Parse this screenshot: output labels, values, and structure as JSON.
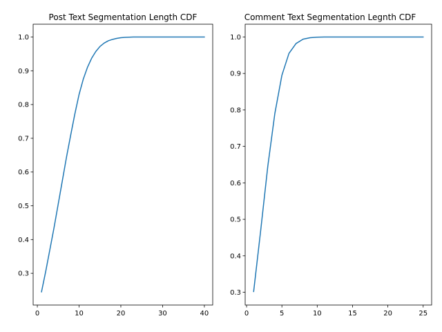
{
  "chart_data": [
    {
      "type": "line",
      "title": "Post Text Segmentation Length CDF",
      "xlabel": "",
      "ylabel": "",
      "xlim": [
        -1,
        42
      ],
      "ylim": [
        0.206,
        1.038
      ],
      "xticks": [
        0,
        10,
        20,
        30,
        40
      ],
      "yticks": [
        0.3,
        0.4,
        0.5,
        0.6,
        0.7,
        0.8,
        0.9,
        1.0
      ],
      "xtick_labels": [
        "0",
        "10",
        "20",
        "30",
        "40"
      ],
      "ytick_labels": [
        "0.3",
        "0.4",
        "0.5",
        "0.6",
        "0.7",
        "0.8",
        "0.9",
        "1.0"
      ],
      "grid": false,
      "color": "#1f77b4",
      "series": [
        {
          "x": [
            1,
            2,
            3,
            4,
            5,
            6,
            7,
            8,
            9,
            10,
            11,
            12,
            13,
            14,
            15,
            16,
            17,
            18,
            19,
            20,
            21,
            22,
            23,
            24,
            25,
            26,
            27,
            28,
            29,
            30,
            31,
            32,
            33,
            34,
            35,
            36,
            37,
            38,
            39,
            40
          ],
          "y": [
            0.245,
            0.305,
            0.37,
            0.435,
            0.505,
            0.575,
            0.645,
            0.71,
            0.773,
            0.83,
            0.875,
            0.91,
            0.937,
            0.957,
            0.972,
            0.982,
            0.989,
            0.993,
            0.996,
            0.998,
            0.999,
            0.9995,
            1.0,
            1.0,
            1.0,
            1.0,
            1.0,
            1.0,
            1.0,
            1.0,
            1.0,
            1.0,
            1.0,
            1.0,
            1.0,
            1.0,
            1.0,
            1.0,
            1.0,
            1.0
          ]
        }
      ]
    },
    {
      "type": "line",
      "title": "Comment Text Segmentation Legnth CDF",
      "xlabel": "",
      "ylabel": "",
      "xlim": [
        -0.2,
        26.2
      ],
      "ylim": [
        0.265,
        1.035
      ],
      "xticks": [
        0,
        5,
        10,
        15,
        20,
        25
      ],
      "yticks": [
        0.3,
        0.4,
        0.5,
        0.6,
        0.7,
        0.8,
        0.9,
        1.0
      ],
      "xtick_labels": [
        "0",
        "5",
        "10",
        "15",
        "20",
        "25"
      ],
      "ytick_labels": [
        "0.3",
        "0.4",
        "0.5",
        "0.6",
        "0.7",
        "0.8",
        "0.9",
        "1.0"
      ],
      "grid": false,
      "color": "#1f77b4",
      "series": [
        {
          "x": [
            1,
            2,
            3,
            4,
            5,
            6,
            7,
            8,
            9,
            10,
            11,
            12,
            13,
            14,
            15,
            16,
            17,
            18,
            19,
            20,
            21,
            22,
            23,
            24,
            25
          ],
          "y": [
            0.302,
            0.47,
            0.645,
            0.79,
            0.895,
            0.955,
            0.982,
            0.994,
            0.998,
            0.9995,
            1.0,
            1.0,
            1.0,
            1.0,
            1.0,
            1.0,
            1.0,
            1.0,
            1.0,
            1.0,
            1.0,
            1.0,
            1.0,
            1.0,
            1.0
          ]
        }
      ]
    }
  ]
}
